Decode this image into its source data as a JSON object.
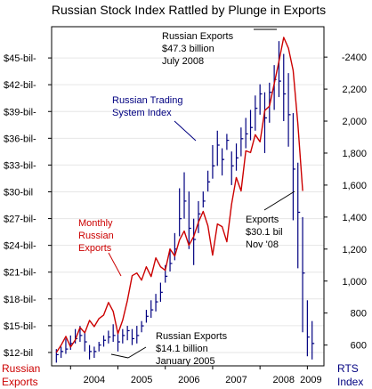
{
  "chart_data": {
    "type": "line",
    "title": "Russian Stock Index Rattled by Plunge in Exports",
    "x_ticks": [
      "2004",
      "2005",
      "2006",
      "2007",
      "2008",
      "2009"
    ],
    "left_axis": {
      "label_line1": "Russian",
      "label_line2": "Exports",
      "unit": "USD billion (monthly)",
      "ylim": [
        10.5,
        48.5
      ],
      "ticks": [
        {
          "v": 12,
          "label": "$12-bil"
        },
        {
          "v": 15,
          "label": "$15-bil-"
        },
        {
          "v": 18,
          "label": "$18-bil-"
        },
        {
          "v": 21,
          "label": "$21-bil-"
        },
        {
          "v": 24,
          "label": "$24-bil-"
        },
        {
          "v": 27,
          "label": "$27-bil-"
        },
        {
          "v": 30,
          "label": "$30-bil"
        },
        {
          "v": 33,
          "label": "$33-bil-"
        },
        {
          "v": 36,
          "label": "$36-bil-"
        },
        {
          "v": 39,
          "label": "$39-bil-"
        },
        {
          "v": 42,
          "label": "$42-bil-"
        },
        {
          "v": 45,
          "label": "$45-bil-"
        }
      ]
    },
    "right_axis": {
      "label_line1": "RTS",
      "label_line2": "Index",
      "ylim": [
        470,
        2590
      ],
      "ticks": [
        {
          "v": 600,
          "label": "600"
        },
        {
          "v": 800,
          "label": "800"
        },
        {
          "v": 1000,
          "label": "1,000"
        },
        {
          "v": 1200,
          "label": "1,200"
        },
        {
          "v": 1400,
          "label": "1,400"
        },
        {
          "v": 1600,
          "label": "1,600"
        },
        {
          "v": 1800,
          "label": "1,800"
        },
        {
          "v": 2000,
          "label": "2,000"
        },
        {
          "v": 2200,
          "label": "2,200"
        },
        {
          "v": 2400,
          "label": "-2400"
        }
      ]
    },
    "series": [
      {
        "name": "Monthly Russian Exports",
        "axis": "left",
        "color": "#cc0000",
        "x": [
          2003.7,
          2003.8,
          2003.9,
          2004.0,
          2004.1,
          2004.2,
          2004.3,
          2004.4,
          2004.5,
          2004.6,
          2004.7,
          2004.8,
          2004.9,
          2005.0,
          2005.1,
          2005.2,
          2005.3,
          2005.4,
          2005.5,
          2005.6,
          2005.7,
          2005.8,
          2005.9,
          2006.0,
          2006.1,
          2006.2,
          2006.3,
          2006.4,
          2006.5,
          2006.6,
          2006.7,
          2006.8,
          2006.9,
          2007.0,
          2007.1,
          2007.2,
          2007.3,
          2007.4,
          2007.5,
          2007.6,
          2007.7,
          2007.8,
          2007.9,
          2008.0,
          2008.1,
          2008.2,
          2008.3,
          2008.4,
          2008.5,
          2008.6,
          2008.7,
          2008.8,
          2008.9
        ],
        "values": [
          12.0,
          12.8,
          13.8,
          12.6,
          13.4,
          14.8,
          14.2,
          15.6,
          14.9,
          15.8,
          16.2,
          17.6,
          16.6,
          14.1,
          15.6,
          17.8,
          20.6,
          20.9,
          20.1,
          21.6,
          20.5,
          22.6,
          21.6,
          21.2,
          23.6,
          22.8,
          24.6,
          25.6,
          24.0,
          25.0,
          26.6,
          27.8,
          26.2,
          22.9,
          26.4,
          26.1,
          24.4,
          28.6,
          31.6,
          30.1,
          34.6,
          34.4,
          36.4,
          35.6,
          39.1,
          39.6,
          42.1,
          44.6,
          47.3,
          46.1,
          43.6,
          37.6,
          30.1
        ]
      },
      {
        "name": "Russian Trading System Index",
        "axis": "right",
        "color": "#000080",
        "type": "hlc",
        "x": [
          2003.7,
          2003.8,
          2003.9,
          2004.0,
          2004.1,
          2004.2,
          2004.3,
          2004.4,
          2004.5,
          2004.6,
          2004.7,
          2004.8,
          2004.9,
          2005.0,
          2005.1,
          2005.2,
          2005.3,
          2005.4,
          2005.5,
          2005.6,
          2005.7,
          2005.8,
          2005.9,
          2006.0,
          2006.1,
          2006.2,
          2006.3,
          2006.4,
          2006.5,
          2006.6,
          2006.7,
          2006.8,
          2006.9,
          2007.0,
          2007.1,
          2007.2,
          2007.3,
          2007.4,
          2007.5,
          2007.6,
          2007.7,
          2007.8,
          2007.9,
          2008.0,
          2008.1,
          2008.2,
          2008.3,
          2008.4,
          2008.5,
          2008.6,
          2008.7,
          2008.8,
          2008.9,
          2009.0,
          2009.1
        ],
        "values": [
          540,
          560,
          575,
          610,
          640,
          660,
          620,
          560,
          560,
          600,
          630,
          650,
          660,
          620,
          660,
          690,
          640,
          660,
          720,
          780,
          820,
          870,
          930,
          1030,
          1110,
          1200,
          1390,
          1500,
          1330,
          1260,
          1420,
          1500,
          1620,
          1720,
          1850,
          1760,
          1880,
          1720,
          1770,
          1890,
          1920,
          1960,
          2080,
          2170,
          2020,
          2180,
          2260,
          2250,
          2170,
          2040,
          1700,
          1430,
          1050,
          650,
          610
        ],
        "high": [
          575,
          590,
          640,
          660,
          700,
          720,
          680,
          600,
          590,
          620,
          660,
          690,
          730,
          690,
          700,
          720,
          700,
          720,
          750,
          820,
          880,
          920,
          990,
          1100,
          1200,
          1300,
          1580,
          1680,
          1560,
          1390,
          1500,
          1560,
          1690,
          1850,
          1940,
          1830,
          1920,
          1810,
          1860,
          1960,
          2020,
          2070,
          2160,
          2230,
          2180,
          2240,
          2350,
          2500,
          2420,
          2300,
          2050,
          1740,
          1400,
          880,
          750
        ],
        "low": [
          490,
          520,
          545,
          570,
          610,
          620,
          560,
          510,
          520,
          560,
          590,
          610,
          620,
          560,
          610,
          630,
          600,
          610,
          680,
          740,
          770,
          810,
          870,
          990,
          1060,
          1130,
          1280,
          1390,
          1200,
          1100,
          1300,
          1460,
          1560,
          1640,
          1720,
          1660,
          1820,
          1600,
          1690,
          1780,
          1830,
          1880,
          1940,
          2040,
          1800,
          1990,
          2070,
          2150,
          2000,
          1840,
          1380,
          1080,
          680,
          530,
          510
        ]
      }
    ],
    "annotations": [
      {
        "id": "peak",
        "lines": [
          "Russian Exports",
          "$47.3 billion",
          "July 2008"
        ]
      },
      {
        "id": "rts",
        "lines": [
          "Russian Trading",
          "System Index"
        ]
      },
      {
        "id": "monthly",
        "lines": [
          "Monthly",
          "Russian",
          "Exports"
        ]
      },
      {
        "id": "nov",
        "lines": [
          "Exports",
          "$30.1 bil",
          "Nov '08"
        ]
      },
      {
        "id": "jan",
        "lines": [
          "Russian Exports",
          "$14.1 billion",
          "January 2005"
        ]
      }
    ]
  }
}
